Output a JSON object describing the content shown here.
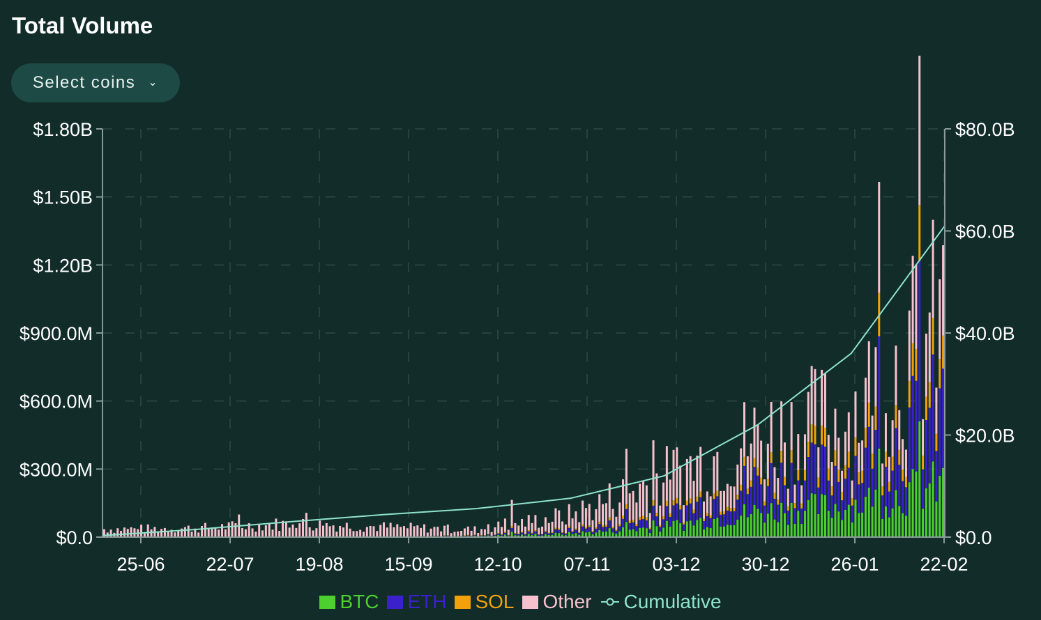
{
  "header": {
    "title": "Total Volume"
  },
  "controls": {
    "select_label": "Select coins",
    "chevron_icon": "chevron-down-icon"
  },
  "colors": {
    "background": "#112c29",
    "BTC": "#4ccf2f",
    "ETH": "#3a21cc",
    "SOL": "#f2a10c",
    "Other": "#f7c1cd",
    "Cumulative": "#8fe3cc",
    "grid": "#2f4a46",
    "axis": "#8a9a98"
  },
  "chart_data": {
    "type": "bar",
    "stacked": true,
    "title": "Total Volume",
    "x_ticks": [
      "25-06",
      "22-07",
      "19-08",
      "15-09",
      "12-10",
      "07-11",
      "03-12",
      "30-12",
      "26-01",
      "22-02"
    ],
    "y_left_ticks": [
      "$0.0",
      "$300.0M",
      "$600.0M",
      "$900.0M",
      "$1.20B",
      "$1.50B",
      "$1.80B"
    ],
    "y_right_ticks": [
      "$0.0",
      "$20.0B",
      "$40.0B",
      "$60.0B",
      "$80.0B"
    ],
    "y_left_range_millions": [
      0,
      1800
    ],
    "y_right_range_billions": [
      0,
      80
    ],
    "grid": true,
    "legend_position": "bottom",
    "series": [
      {
        "name": "BTC",
        "axis": "left"
      },
      {
        "name": "ETH",
        "axis": "left"
      },
      {
        "name": "SOL",
        "axis": "left"
      },
      {
        "name": "Other",
        "axis": "left"
      },
      {
        "name": "Cumulative",
        "axis": "right",
        "type": "line"
      }
    ],
    "weekly_totals_millions": [
      {
        "x": "25-06",
        "BTC": 0,
        "ETH": 0,
        "SOL": 0,
        "Other": 35
      },
      {
        "x": "22-07",
        "BTC": 0,
        "ETH": 0,
        "SOL": 0,
        "Other": 40
      },
      {
        "x": "19-08",
        "BTC": 0,
        "ETH": 0,
        "SOL": 0,
        "Other": 60
      },
      {
        "x": "15-09",
        "BTC": 0,
        "ETH": 0,
        "SOL": 0,
        "Other": 45
      },
      {
        "x": "12-10",
        "BTC": 4,
        "ETH": 2,
        "SOL": 2,
        "Other": 25
      },
      {
        "x": "07-11",
        "BTC": 15,
        "ETH": 12,
        "SOL": 5,
        "Other": 65
      },
      {
        "x": "03-12",
        "BTC": 45,
        "ETH": 40,
        "SOL": 15,
        "Other": 160
      },
      {
        "x": "30-12",
        "BTC": 110,
        "ETH": 130,
        "SOL": 30,
        "Other": 170
      },
      {
        "x": "26-01",
        "BTC": 140,
        "ETH": 160,
        "SOL": 70,
        "Other": 170
      },
      {
        "x": "22-02",
        "BTC": 230,
        "ETH": 330,
        "SOL": 110,
        "Other": 300
      }
    ],
    "cumulative_billions": [
      {
        "x": "25-06",
        "y": 0.3
      },
      {
        "x": "22-07",
        "y": 1.5
      },
      {
        "x": "19-08",
        "y": 3.0
      },
      {
        "x": "15-09",
        "y": 4.4
      },
      {
        "x": "12-10",
        "y": 5.6
      },
      {
        "x": "07-11",
        "y": 7.6
      },
      {
        "x": "03-12",
        "y": 12.0
      },
      {
        "x": "30-12",
        "y": 22.0
      },
      {
        "x": "26-01",
        "y": 36.0
      },
      {
        "x": "22-02",
        "y": 61.0
      }
    ]
  },
  "legend": [
    {
      "key": "BTC",
      "label": "BTC"
    },
    {
      "key": "ETH",
      "label": "ETH"
    },
    {
      "key": "SOL",
      "label": "SOL"
    },
    {
      "key": "Other",
      "label": "Other"
    },
    {
      "key": "Cumulative",
      "label": "Cumulative"
    }
  ]
}
